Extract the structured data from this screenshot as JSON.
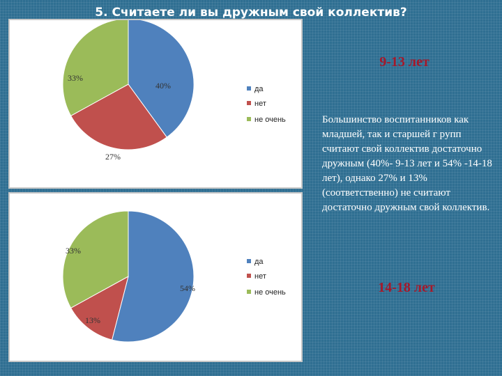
{
  "page": {
    "title": "5. Считаете ли вы дружным свой коллектив?",
    "heading_1": "9-13 лет",
    "heading_2": "14-18 лет",
    "description": "Большинство воспитанников как младшей, так и старшей г рупп считают свой коллектив достаточно дружным (40%- 9-13 лет и 54% -14-18 лет), однако 27% и 13% (соответственно) не считают достаточно дружным свой коллектив."
  },
  "colors": {
    "background": "#2f6f92",
    "heading": "#a4182a",
    "da": "#4f81bd",
    "net": "#c0504d",
    "ne_ochen": "#9bbb59"
  },
  "chart_data": [
    {
      "type": "pie",
      "categories": [
        "да",
        "нет",
        "не очень"
      ],
      "values": [
        40,
        27,
        33
      ],
      "labels": [
        "40%",
        "27%",
        "33%"
      ],
      "colors": [
        "#4f81bd",
        "#c0504d",
        "#9bbb59"
      ],
      "legend": "right"
    },
    {
      "type": "pie",
      "categories": [
        "да",
        "нет",
        "не очень"
      ],
      "values": [
        54,
        13,
        33
      ],
      "labels": [
        "54%",
        "13%",
        "33%"
      ],
      "colors": [
        "#4f81bd",
        "#c0504d",
        "#9bbb59"
      ],
      "legend": "right"
    }
  ]
}
